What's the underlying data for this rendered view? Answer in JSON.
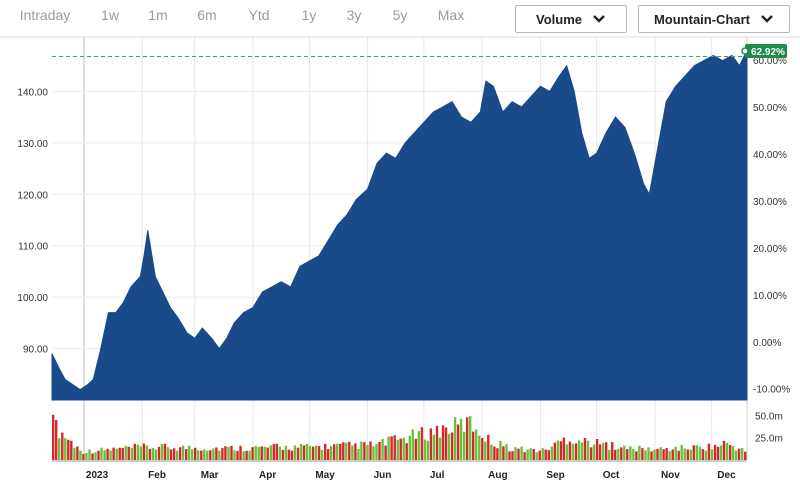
{
  "range_tabs": [
    {
      "label": "Intraday",
      "active": false
    },
    {
      "label": "1w",
      "active": false
    },
    {
      "label": "1m",
      "active": false
    },
    {
      "label": "6m",
      "active": false
    },
    {
      "label": "Ytd",
      "active": false
    },
    {
      "label": "1y",
      "active": true
    },
    {
      "label": "3y",
      "active": false
    },
    {
      "label": "5y",
      "active": false
    },
    {
      "label": "Max",
      "active": false
    }
  ],
  "controls": {
    "volume_label": "Volume",
    "chart_type_label": "Mountain-Chart",
    "dropdown_icon": "chevron-down-icon"
  },
  "colors": {
    "area": "#1a4a8a",
    "vol_up": "#6bbf3a",
    "vol_down": "#d02a2a",
    "badge": "#1f8a4c",
    "ref_line": "#3f9c8a"
  },
  "chart_data": {
    "type": "area",
    "title": "",
    "last_change_badge": "62.92%",
    "price_axis": {
      "ylim": [
        80,
        150
      ],
      "ticks": [
        90,
        100,
        110,
        120,
        130,
        140
      ],
      "tick_labels": [
        "90.00",
        "100.00",
        "110.00",
        "120.00",
        "130.00",
        "140.00"
      ]
    },
    "percent_axis": {
      "ylim": [
        -12.4,
        64.3
      ],
      "ticks": [
        -10,
        0,
        10,
        20,
        30,
        40,
        50,
        60
      ],
      "tick_labels": [
        "-10.00%",
        "0.00%",
        "10.00%",
        "20.00%",
        "30.00%",
        "40.00%",
        "50.00%",
        "60.00%"
      ]
    },
    "volume_axis": {
      "ylim": [
        0,
        65000000
      ],
      "ticks": [
        25000000,
        50000000
      ],
      "tick_labels": [
        "25.0m",
        "50.0m"
      ]
    },
    "x_axis": {
      "xlim": [
        "2022-12-15",
        "2023-12-20"
      ],
      "ticks": [
        "2023-01-01",
        "2023-02-01",
        "2023-03-01",
        "2023-04-01",
        "2023-05-01",
        "2023-06-01",
        "2023-07-01",
        "2023-08-01",
        "2023-09-01",
        "2023-10-01",
        "2023-11-01",
        "2023-12-01"
      ],
      "tick_labels": [
        "2023",
        "Feb",
        "Mar",
        "Apr",
        "May",
        "Jun",
        "Jul",
        "Aug",
        "Sep",
        "Oct",
        "Nov",
        "Dec"
      ]
    },
    "reference_line": {
      "value": 146.8,
      "style": "dashed"
    },
    "price_series": {
      "x": [
        "2022-12-15",
        "2022-12-19",
        "2022-12-22",
        "2022-12-26",
        "2022-12-30",
        "2023-01-03",
        "2023-01-06",
        "2023-01-10",
        "2023-01-14",
        "2023-01-18",
        "2023-01-22",
        "2023-01-26",
        "2023-01-31",
        "2023-02-02",
        "2023-02-04",
        "2023-02-08",
        "2023-02-12",
        "2023-02-16",
        "2023-02-20",
        "2023-02-25",
        "2023-03-01",
        "2023-03-05",
        "2023-03-10",
        "2023-03-14",
        "2023-03-18",
        "2023-03-22",
        "2023-03-27",
        "2023-04-01",
        "2023-04-06",
        "2023-04-11",
        "2023-04-16",
        "2023-04-21",
        "2023-04-26",
        "2023-05-01",
        "2023-05-06",
        "2023-05-11",
        "2023-05-16",
        "2023-05-21",
        "2023-05-26",
        "2023-06-01",
        "2023-06-06",
        "2023-06-11",
        "2023-06-16",
        "2023-06-21",
        "2023-06-26",
        "2023-07-01",
        "2023-07-06",
        "2023-07-11",
        "2023-07-16",
        "2023-07-21",
        "2023-07-26",
        "2023-07-31",
        "2023-08-03",
        "2023-08-07",
        "2023-08-12",
        "2023-08-17",
        "2023-08-22",
        "2023-08-27",
        "2023-09-01",
        "2023-09-06",
        "2023-09-11",
        "2023-09-15",
        "2023-09-19",
        "2023-09-23",
        "2023-09-27",
        "2023-10-01",
        "2023-10-06",
        "2023-10-11",
        "2023-10-16",
        "2023-10-21",
        "2023-10-26",
        "2023-10-29",
        "2023-11-02",
        "2023-11-07",
        "2023-11-12",
        "2023-11-17",
        "2023-11-22",
        "2023-11-27",
        "2023-12-02",
        "2023-12-07",
        "2023-12-12",
        "2023-12-16",
        "2023-12-20"
      ],
      "values": [
        89,
        86,
        84,
        83,
        82,
        83,
        84,
        90,
        97,
        97,
        99,
        102,
        104,
        108,
        113,
        104,
        101,
        98,
        96,
        93,
        92,
        94,
        92,
        90,
        92,
        95,
        97,
        98,
        101,
        102,
        103,
        102,
        106,
        107,
        108,
        111,
        114,
        116,
        119,
        121,
        126,
        128,
        127,
        130,
        132,
        134,
        136,
        137,
        138,
        135,
        134,
        136,
        142,
        141,
        136,
        138,
        137,
        139,
        141,
        140,
        143,
        145,
        140,
        132,
        127,
        128,
        132,
        135,
        133,
        128,
        122,
        120,
        128,
        138,
        141,
        143,
        145,
        146,
        147,
        146,
        147,
        145,
        148
      ]
    },
    "volume_series": {
      "x": [
        "2022-12-15",
        "2022-12-31",
        "2023-01-31",
        "2023-03-16",
        "2023-04-28",
        "2023-06-06",
        "2023-07-26",
        "2023-08-06",
        "2023-08-16",
        "2023-09-03",
        "2023-09-15",
        "2023-10-16",
        "2023-11-02",
        "2023-11-27",
        "2023-12-11",
        "2023-12-20"
      ],
      "values": [
        62000000,
        14000000,
        22000000,
        20000000,
        22000000,
        26000000,
        63000000,
        30000000,
        20000000,
        16000000,
        37000000,
        20000000,
        18000000,
        22000000,
        26000000,
        14000000
      ]
    }
  }
}
